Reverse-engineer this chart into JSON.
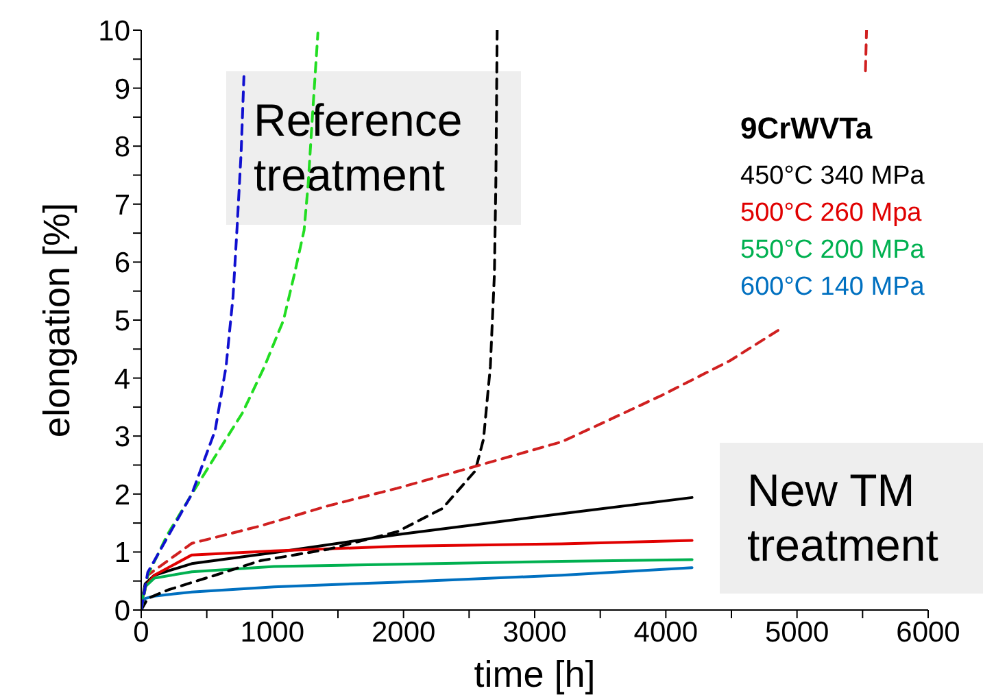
{
  "chart_data": {
    "type": "line",
    "xlabel": "time [h]",
    "ylabel": "elongation [%]",
    "legend_title": "9CrWVTa",
    "legend": "top right",
    "xlim": [
      0,
      6000
    ],
    "ylim": [
      0,
      10
    ],
    "xticks": [
      0,
      {
        "value": 500,
        "label": null
      },
      1000,
      {
        "value": 1500,
        "label": null
      },
      2000,
      {
        "value": 2500,
        "label": null
      },
      3000,
      {
        "value": 3500,
        "label": null
      },
      4000,
      {
        "value": 4500,
        "label": null
      },
      5000,
      {
        "value": 5500,
        "label": null
      },
      6000
    ],
    "yticks": [
      0,
      {
        "value": 0.5,
        "label": null
      },
      1,
      {
        "value": 1.5,
        "label": null
      },
      2,
      {
        "value": 2.5,
        "label": null
      },
      3,
      {
        "value": 3.5,
        "label": null
      },
      4,
      {
        "value": 4.5,
        "label": null
      },
      5,
      {
        "value": 5.5,
        "label": null
      },
      6,
      {
        "value": 6.5,
        "label": null
      },
      7,
      {
        "value": 7.5,
        "label": null
      },
      8,
      {
        "value": 8.5,
        "label": null
      },
      9,
      {
        "value": 9.5,
        "label": null
      },
      10
    ],
    "annotations": [
      "Reference treatment",
      "New TM treatment"
    ],
    "series": [
      {
        "name": "450°C 340 MPa",
        "color": "#000000",
        "line_style": "solid",
        "x": [
          0,
          30,
          100,
          386,
          1012,
          1952,
          3205,
          4200
        ],
        "values": [
          0.1,
          0.45,
          0.6,
          0.8,
          0.99,
          1.3,
          1.66,
          1.94
        ]
      },
      {
        "name": "500°C 260 Mpa",
        "color": "#e00000",
        "line_style": "solid",
        "x": [
          0,
          30,
          100,
          386,
          1012,
          1952,
          3205,
          4200
        ],
        "values": [
          0.1,
          0.4,
          0.6,
          0.95,
          1.02,
          1.1,
          1.14,
          1.2
        ]
      },
      {
        "name": "550°C 200 MPa",
        "color": "#00b050",
        "line_style": "solid",
        "x": [
          0,
          30,
          100,
          386,
          1012,
          1952,
          3205,
          4200
        ],
        "values": [
          0.1,
          0.4,
          0.55,
          0.66,
          0.75,
          0.79,
          0.84,
          0.87
        ]
      },
      {
        "name": "600°C 140 MPa",
        "color": "#0070c0",
        "line_style": "solid",
        "x": [
          0,
          30,
          100,
          386,
          1012,
          1952,
          3205,
          4200
        ],
        "values": [
          0.05,
          0.2,
          0.24,
          0.31,
          0.4,
          0.48,
          0.6,
          0.73
        ]
      },
      {
        "color": "#000000",
        "line_style": "dashed",
        "x": [
          0,
          50,
          209,
          564,
          908,
          1430,
          1952,
          2296,
          2547,
          2610,
          2662,
          2693,
          2704,
          2714
        ],
        "values": [
          0,
          0.2,
          0.35,
          0.6,
          0.85,
          1.05,
          1.35,
          1.75,
          2.4,
          2.95,
          4.2,
          5.8,
          7.4,
          10
        ]
      },
      {
        "color": "#d02020",
        "line_style": "dashed",
        "x": [
          0,
          50,
          386,
          908,
          1430,
          1952,
          2505,
          3205,
          3445,
          3967,
          4489,
          4875,
          5200,
          5522,
          5530
        ],
        "values": [
          0,
          0.6,
          1.15,
          1.45,
          1.8,
          2.1,
          2.45,
          2.9,
          3.15,
          3.7,
          4.3,
          4.85,
          null,
          9.3,
          10
        ]
      },
      {
        "color": "#22dd22",
        "line_style": "dashed",
        "x": [
          0,
          50,
          200,
          386,
          564,
          772,
          940,
          1085,
          1169,
          1242,
          1273,
          1305,
          1347
        ],
        "values": [
          0,
          0.6,
          1.3,
          2.0,
          2.65,
          3.4,
          4.2,
          5.0,
          5.8,
          6.55,
          7.35,
          8.5,
          9.95
        ]
      },
      {
        "color": "#1010d0",
        "line_style": "dashed",
        "x": [
          0,
          50,
          386,
          564,
          647,
          700,
          731,
          762,
          783
        ],
        "values": [
          0,
          0.65,
          2.0,
          3.1,
          4.2,
          5.4,
          6.6,
          7.9,
          9.2
        ]
      }
    ]
  }
}
